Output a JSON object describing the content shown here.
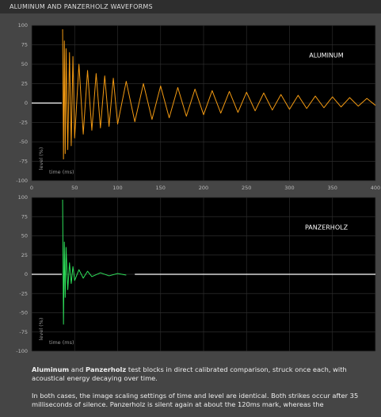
{
  "header": {
    "title": "ALUMINUM AND PANZERHOLZ WAVEFORMS"
  },
  "chart_data": [
    {
      "type": "line",
      "label": "ALUMINUM",
      "y_label": "level (%)",
      "x_label": "time (ms)",
      "color": "#f39a12",
      "grid": true,
      "xlim": [
        0,
        400
      ],
      "ylim": [
        -100,
        100
      ],
      "xticks": [
        0,
        50,
        100,
        150,
        200,
        250,
        300,
        350,
        400
      ],
      "yticks": [
        -100,
        -75,
        -50,
        -25,
        0,
        25,
        50,
        75,
        100
      ],
      "x": [
        0,
        35,
        36,
        37,
        38,
        39,
        40,
        42,
        44,
        46,
        48,
        50,
        55,
        60,
        65,
        70,
        75,
        80,
        85,
        90,
        95,
        100,
        110,
        120,
        130,
        140,
        150,
        160,
        170,
        180,
        190,
        200,
        210,
        220,
        230,
        240,
        250,
        260,
        270,
        280,
        290,
        300,
        310,
        320,
        330,
        340,
        350,
        360,
        370,
        380,
        390,
        400
      ],
      "values": [
        0,
        0,
        95,
        -72,
        80,
        -65,
        70,
        -60,
        65,
        -55,
        60,
        -45,
        50,
        -40,
        42,
        -35,
        38,
        -32,
        35,
        -30,
        32,
        -27,
        28,
        -24,
        25,
        -21,
        22,
        -19,
        20,
        -17,
        18,
        -15,
        16,
        -13,
        15,
        -12,
        14,
        -10,
        13,
        -9,
        11,
        -8,
        10,
        -7,
        9,
        -6,
        8,
        -5,
        7,
        -4,
        6,
        -3
      ]
    },
    {
      "type": "line",
      "label": "PANZERHOLZ",
      "y_label": "level (%)",
      "x_label": "time (ms)",
      "color": "#2ee05a",
      "grid": true,
      "xlim": [
        0,
        400
      ],
      "ylim": [
        -100,
        100
      ],
      "xticks": [
        0,
        50,
        100,
        150,
        200,
        250,
        300,
        350,
        400
      ],
      "yticks": [
        -100,
        -75,
        -50,
        -25,
        0,
        25,
        50,
        75,
        100
      ],
      "x": [
        0,
        35,
        36,
        37,
        38,
        39,
        40,
        42,
        44,
        46,
        48,
        50,
        55,
        60,
        65,
        70,
        80,
        90,
        100,
        110,
        120,
        400
      ],
      "values": [
        0,
        0,
        97,
        -65,
        42,
        -30,
        35,
        -20,
        15,
        -12,
        10,
        -8,
        6,
        -5,
        4,
        -3,
        2,
        -2,
        1,
        -1,
        0,
        0
      ]
    }
  ],
  "text": {
    "paragraphs": [
      {
        "runs": [
          {
            "text": "Aluminum",
            "bold": true
          },
          {
            "text": " and ",
            "bold": false
          },
          {
            "text": "Panzerholz",
            "bold": true
          },
          {
            "text": " test blocks in direct calibrated comparison, struck once each, with acoustical energy decaying over time.",
            "bold": false
          }
        ]
      },
      {
        "runs": [
          {
            "text": "In both cases, the image scaling settings of time and level are identical. Both strikes occur after 35 milliseconds of silence. Panzerholz is silent again at about the 120ms mark, whereas the",
            "bold": false
          }
        ]
      }
    ]
  }
}
